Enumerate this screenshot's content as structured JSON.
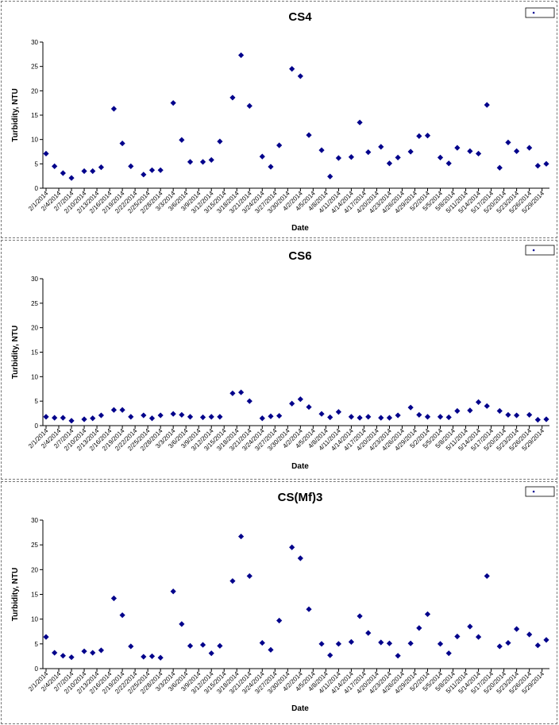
{
  "colors": {
    "marker": "#00008B",
    "axis": "#000000",
    "background": "#ffffff"
  },
  "chart_data": [
    {
      "type": "scatter",
      "title": "CS4",
      "xlabel": "Date",
      "ylabel": "Turbidity, NTU",
      "ylim": [
        0,
        30
      ],
      "yticks": [
        0,
        5,
        10,
        15,
        20,
        25,
        30
      ],
      "xlim": [
        "2014-02-01",
        "2014-05-30"
      ],
      "xtick_labels": [
        "2/1/2014",
        "2/4/2014",
        "2/7/2014",
        "2/10/2014",
        "2/13/2014",
        "2/16/2014",
        "2/19/2014",
        "2/22/2014",
        "2/25/2014",
        "2/28/2014",
        "3/3/2014",
        "3/6/2014",
        "3/9/2014",
        "3/12/2014",
        "3/15/2014",
        "3/18/2014",
        "3/21/2014",
        "3/24/2014",
        "3/27/2014",
        "3/30/2014",
        "4/2/2014",
        "4/5/2014",
        "4/8/2014",
        "4/11/2014",
        "4/14/2014",
        "4/17/2014",
        "4/20/2014",
        "4/23/2014",
        "4/26/2014",
        "4/29/2014",
        "5/2/2014",
        "5/5/2014",
        "5/8/2014",
        "5/11/2014",
        "5/14/2014",
        "5/17/2014",
        "5/20/2014",
        "5/23/2014",
        "5/26/2014",
        "5/29/2014"
      ],
      "grid": false,
      "legend": "top-right",
      "points": [
        [
          "2014-02-01",
          7.1
        ],
        [
          "2014-02-03",
          4.5
        ],
        [
          "2014-02-05",
          3.1
        ],
        [
          "2014-02-07",
          2.1
        ],
        [
          "2014-02-10",
          3.5
        ],
        [
          "2014-02-12",
          3.5
        ],
        [
          "2014-02-14",
          4.3
        ],
        [
          "2014-02-17",
          16.3
        ],
        [
          "2014-02-19",
          9.2
        ],
        [
          "2014-02-21",
          4.5
        ],
        [
          "2014-02-24",
          2.8
        ],
        [
          "2014-02-26",
          3.7
        ],
        [
          "2014-02-28",
          3.7
        ],
        [
          "2014-03-03",
          17.5
        ],
        [
          "2014-03-05",
          9.9
        ],
        [
          "2014-03-07",
          5.4
        ],
        [
          "2014-03-10",
          5.4
        ],
        [
          "2014-03-12",
          5.8
        ],
        [
          "2014-03-14",
          9.6
        ],
        [
          "2014-03-17",
          18.6
        ],
        [
          "2014-03-19",
          27.3
        ],
        [
          "2014-03-21",
          16.9
        ],
        [
          "2014-03-24",
          6.5
        ],
        [
          "2014-03-26",
          4.4
        ],
        [
          "2014-03-28",
          8.8
        ],
        [
          "2014-03-31",
          24.5
        ],
        [
          "2014-04-02",
          23.0
        ],
        [
          "2014-04-04",
          10.9
        ],
        [
          "2014-04-07",
          7.8
        ],
        [
          "2014-04-09",
          2.4
        ],
        [
          "2014-04-11",
          6.2
        ],
        [
          "2014-04-14",
          6.4
        ],
        [
          "2014-04-16",
          13.5
        ],
        [
          "2014-04-18",
          7.4
        ],
        [
          "2014-04-21",
          8.5
        ],
        [
          "2014-04-23",
          5.1
        ],
        [
          "2014-04-25",
          6.3
        ],
        [
          "2014-04-28",
          7.5
        ],
        [
          "2014-04-30",
          10.7
        ],
        [
          "2014-05-02",
          10.8
        ],
        [
          "2014-05-05",
          6.3
        ],
        [
          "2014-05-07",
          5.1
        ],
        [
          "2014-05-09",
          8.3
        ],
        [
          "2014-05-12",
          7.6
        ],
        [
          "2014-05-14",
          7.1
        ],
        [
          "2014-05-16",
          17.1
        ],
        [
          "2014-05-19",
          4.2
        ],
        [
          "2014-05-21",
          9.4
        ],
        [
          "2014-05-23",
          7.6
        ],
        [
          "2014-05-26",
          8.3
        ],
        [
          "2014-05-28",
          4.6
        ],
        [
          "2014-05-30",
          5.0
        ]
      ]
    },
    {
      "type": "scatter",
      "title": "CS6",
      "xlabel": "Date",
      "ylabel": "Turbidity, NTU",
      "ylim": [
        0,
        30
      ],
      "yticks": [
        0,
        5,
        10,
        15,
        20,
        25,
        30
      ],
      "xlim": [
        "2014-02-01",
        "2014-05-30"
      ],
      "xtick_labels": [
        "2/1/2014",
        "2/4/2014",
        "2/7/2014",
        "2/10/2014",
        "2/13/2014",
        "2/16/2014",
        "2/19/2014",
        "2/22/2014",
        "2/25/2014",
        "2/28/2014",
        "3/3/2014",
        "3/6/2014",
        "3/9/2014",
        "3/12/2014",
        "3/15/2014",
        "3/18/2014",
        "3/21/2014",
        "3/24/2014",
        "3/27/2014",
        "3/30/2014",
        "4/2/2014",
        "4/5/2014",
        "4/8/2014",
        "4/11/2014",
        "4/14/2014",
        "4/17/2014",
        "4/20/2014",
        "4/23/2014",
        "4/26/2014",
        "4/29/2014",
        "5/2/2014",
        "5/5/2014",
        "5/8/2014",
        "5/11/2014",
        "5/14/2014",
        "5/17/2014",
        "5/20/2014",
        "5/23/2014",
        "5/26/2014",
        "5/29/2014"
      ],
      "grid": false,
      "legend": "top-right",
      "points": [
        [
          "2014-02-01",
          1.8
        ],
        [
          "2014-02-03",
          1.6
        ],
        [
          "2014-02-05",
          1.6
        ],
        [
          "2014-02-07",
          1.0
        ],
        [
          "2014-02-10",
          1.3
        ],
        [
          "2014-02-12",
          1.5
        ],
        [
          "2014-02-14",
          2.1
        ],
        [
          "2014-02-17",
          3.2
        ],
        [
          "2014-02-19",
          3.2
        ],
        [
          "2014-02-21",
          1.8
        ],
        [
          "2014-02-24",
          2.1
        ],
        [
          "2014-02-26",
          1.5
        ],
        [
          "2014-02-28",
          2.1
        ],
        [
          "2014-03-03",
          2.4
        ],
        [
          "2014-03-05",
          2.2
        ],
        [
          "2014-03-07",
          1.8
        ],
        [
          "2014-03-10",
          1.7
        ],
        [
          "2014-03-12",
          1.8
        ],
        [
          "2014-03-14",
          1.8
        ],
        [
          "2014-03-17",
          6.6
        ],
        [
          "2014-03-19",
          6.8
        ],
        [
          "2014-03-21",
          5.0
        ],
        [
          "2014-03-24",
          1.5
        ],
        [
          "2014-03-26",
          1.9
        ],
        [
          "2014-03-28",
          2.0
        ],
        [
          "2014-03-31",
          4.5
        ],
        [
          "2014-04-02",
          5.4
        ],
        [
          "2014-04-04",
          3.8
        ],
        [
          "2014-04-07",
          2.4
        ],
        [
          "2014-04-09",
          1.7
        ],
        [
          "2014-04-11",
          2.8
        ],
        [
          "2014-04-14",
          1.8
        ],
        [
          "2014-04-16",
          1.6
        ],
        [
          "2014-04-18",
          1.8
        ],
        [
          "2014-04-21",
          1.6
        ],
        [
          "2014-04-23",
          1.6
        ],
        [
          "2014-04-25",
          2.1
        ],
        [
          "2014-04-28",
          3.7
        ],
        [
          "2014-04-30",
          2.2
        ],
        [
          "2014-05-02",
          1.8
        ],
        [
          "2014-05-05",
          1.8
        ],
        [
          "2014-05-07",
          1.7
        ],
        [
          "2014-05-09",
          3.0
        ],
        [
          "2014-05-12",
          3.1
        ],
        [
          "2014-05-14",
          4.8
        ],
        [
          "2014-05-16",
          4.0
        ],
        [
          "2014-05-19",
          3.0
        ],
        [
          "2014-05-21",
          2.2
        ],
        [
          "2014-05-23",
          2.1
        ],
        [
          "2014-05-26",
          2.2
        ],
        [
          "2014-05-28",
          1.2
        ],
        [
          "2014-05-30",
          1.3
        ]
      ]
    },
    {
      "type": "scatter",
      "title": "CS(Mf)3",
      "xlabel": "Date",
      "ylabel": "Turbidity, NTU",
      "ylim": [
        0,
        30
      ],
      "yticks": [
        0,
        5,
        10,
        15,
        20,
        25,
        30
      ],
      "xlim": [
        "2014-02-01",
        "2014-05-30"
      ],
      "xtick_labels": [
        "2/1/2014",
        "2/4/2014",
        "2/7/2014",
        "2/10/2014",
        "2/13/2014",
        "2/16/2014",
        "2/19/2014",
        "2/22/2014",
        "2/25/2014",
        "2/28/2014",
        "3/3/2014",
        "3/6/2014",
        "3/9/2014",
        "3/12/2014",
        "3/15/2014",
        "3/18/2014",
        "3/21/2014",
        "3/24/2014",
        "3/27/2014",
        "3/30/2014",
        "4/2/2014",
        "4/5/2014",
        "4/8/2014",
        "4/11/2014",
        "4/14/2014",
        "4/17/2014",
        "4/20/2014",
        "4/23/2014",
        "4/26/2014",
        "4/29/2014",
        "5/2/2014",
        "5/5/2014",
        "5/8/2014",
        "5/11/2014",
        "5/14/2014",
        "5/17/2014",
        "5/20/2014",
        "5/23/2014",
        "5/26/2014",
        "5/29/2014"
      ],
      "grid": false,
      "legend": "top-right",
      "points": [
        [
          "2014-02-01",
          6.4
        ],
        [
          "2014-02-03",
          3.2
        ],
        [
          "2014-02-05",
          2.6
        ],
        [
          "2014-02-07",
          2.3
        ],
        [
          "2014-02-10",
          3.5
        ],
        [
          "2014-02-12",
          3.2
        ],
        [
          "2014-02-14",
          3.7
        ],
        [
          "2014-02-17",
          14.2
        ],
        [
          "2014-02-19",
          10.8
        ],
        [
          "2014-02-21",
          4.5
        ],
        [
          "2014-02-24",
          2.4
        ],
        [
          "2014-02-26",
          2.5
        ],
        [
          "2014-02-28",
          2.2
        ],
        [
          "2014-03-03",
          15.6
        ],
        [
          "2014-03-05",
          9.0
        ],
        [
          "2014-03-07",
          4.6
        ],
        [
          "2014-03-10",
          4.8
        ],
        [
          "2014-03-12",
          3.1
        ],
        [
          "2014-03-14",
          4.6
        ],
        [
          "2014-03-17",
          17.7
        ],
        [
          "2014-03-19",
          26.7
        ],
        [
          "2014-03-21",
          18.7
        ],
        [
          "2014-03-24",
          5.2
        ],
        [
          "2014-03-26",
          3.8
        ],
        [
          "2014-03-28",
          9.7
        ],
        [
          "2014-03-31",
          24.5
        ],
        [
          "2014-04-02",
          22.3
        ],
        [
          "2014-04-04",
          12.0
        ],
        [
          "2014-04-07",
          5.0
        ],
        [
          "2014-04-09",
          2.7
        ],
        [
          "2014-04-11",
          5.0
        ],
        [
          "2014-04-14",
          5.4
        ],
        [
          "2014-04-16",
          10.6
        ],
        [
          "2014-04-18",
          7.2
        ],
        [
          "2014-04-21",
          5.3
        ],
        [
          "2014-04-23",
          5.1
        ],
        [
          "2014-04-25",
          2.6
        ],
        [
          "2014-04-28",
          5.1
        ],
        [
          "2014-04-30",
          8.2
        ],
        [
          "2014-05-02",
          11.0
        ],
        [
          "2014-05-05",
          5.0
        ],
        [
          "2014-05-07",
          3.1
        ],
        [
          "2014-05-09",
          6.5
        ],
        [
          "2014-05-12",
          8.5
        ],
        [
          "2014-05-14",
          6.4
        ],
        [
          "2014-05-16",
          18.7
        ],
        [
          "2014-05-19",
          4.5
        ],
        [
          "2014-05-21",
          5.2
        ],
        [
          "2014-05-23",
          8.0
        ],
        [
          "2014-05-26",
          6.9
        ],
        [
          "2014-05-28",
          4.7
        ],
        [
          "2014-05-30",
          5.8
        ]
      ]
    }
  ]
}
